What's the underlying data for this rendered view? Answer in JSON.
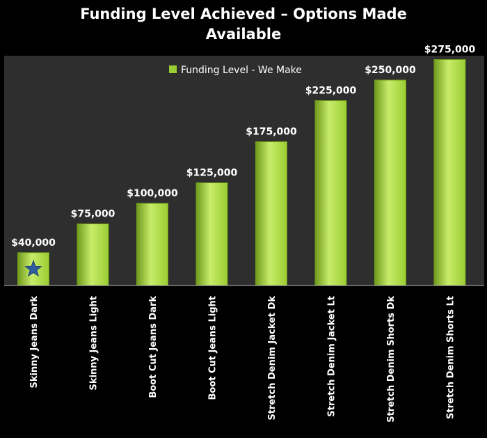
{
  "chart_data": {
    "type": "bar",
    "title_line1": "Funding Level Achieved – Options Made",
    "title_line2": "Available",
    "categories": [
      "Skinny Jeans Dark",
      "Skinny Jeans Light",
      "Boot Cut Jeans Dark",
      "Boot Cut Jeans Light",
      "Stretch Denim Jacket Dk",
      "Stretch Denim Jacket Lt",
      "Stretch Denim Shorts Dk",
      "Stretch Denim Shorts Lt"
    ],
    "series": [
      {
        "name": "Funding Level - We Make",
        "values": [
          40000,
          75000,
          100000,
          125000,
          175000,
          225000,
          250000,
          275000
        ],
        "data_labels": [
          "$40,000",
          "$75,000",
          "$100,000",
          "$125,000",
          "$175,000",
          "$225,000",
          "$250,000",
          "$275,000"
        ]
      }
    ],
    "ylim": [
      0,
      300000
    ],
    "grid": false,
    "legend_position": "top-left",
    "marker": {
      "category": "Skinny Jeans Dark",
      "icon": "star-icon",
      "color": "#2f5ea0"
    },
    "colors": {
      "background": "#000000",
      "plot_area": "#2e2e2e",
      "bar_fill": "#9acd32",
      "bar_dark": "#6f9a1c",
      "bar_light": "#c8ec6a",
      "text": "#ffffff"
    }
  }
}
